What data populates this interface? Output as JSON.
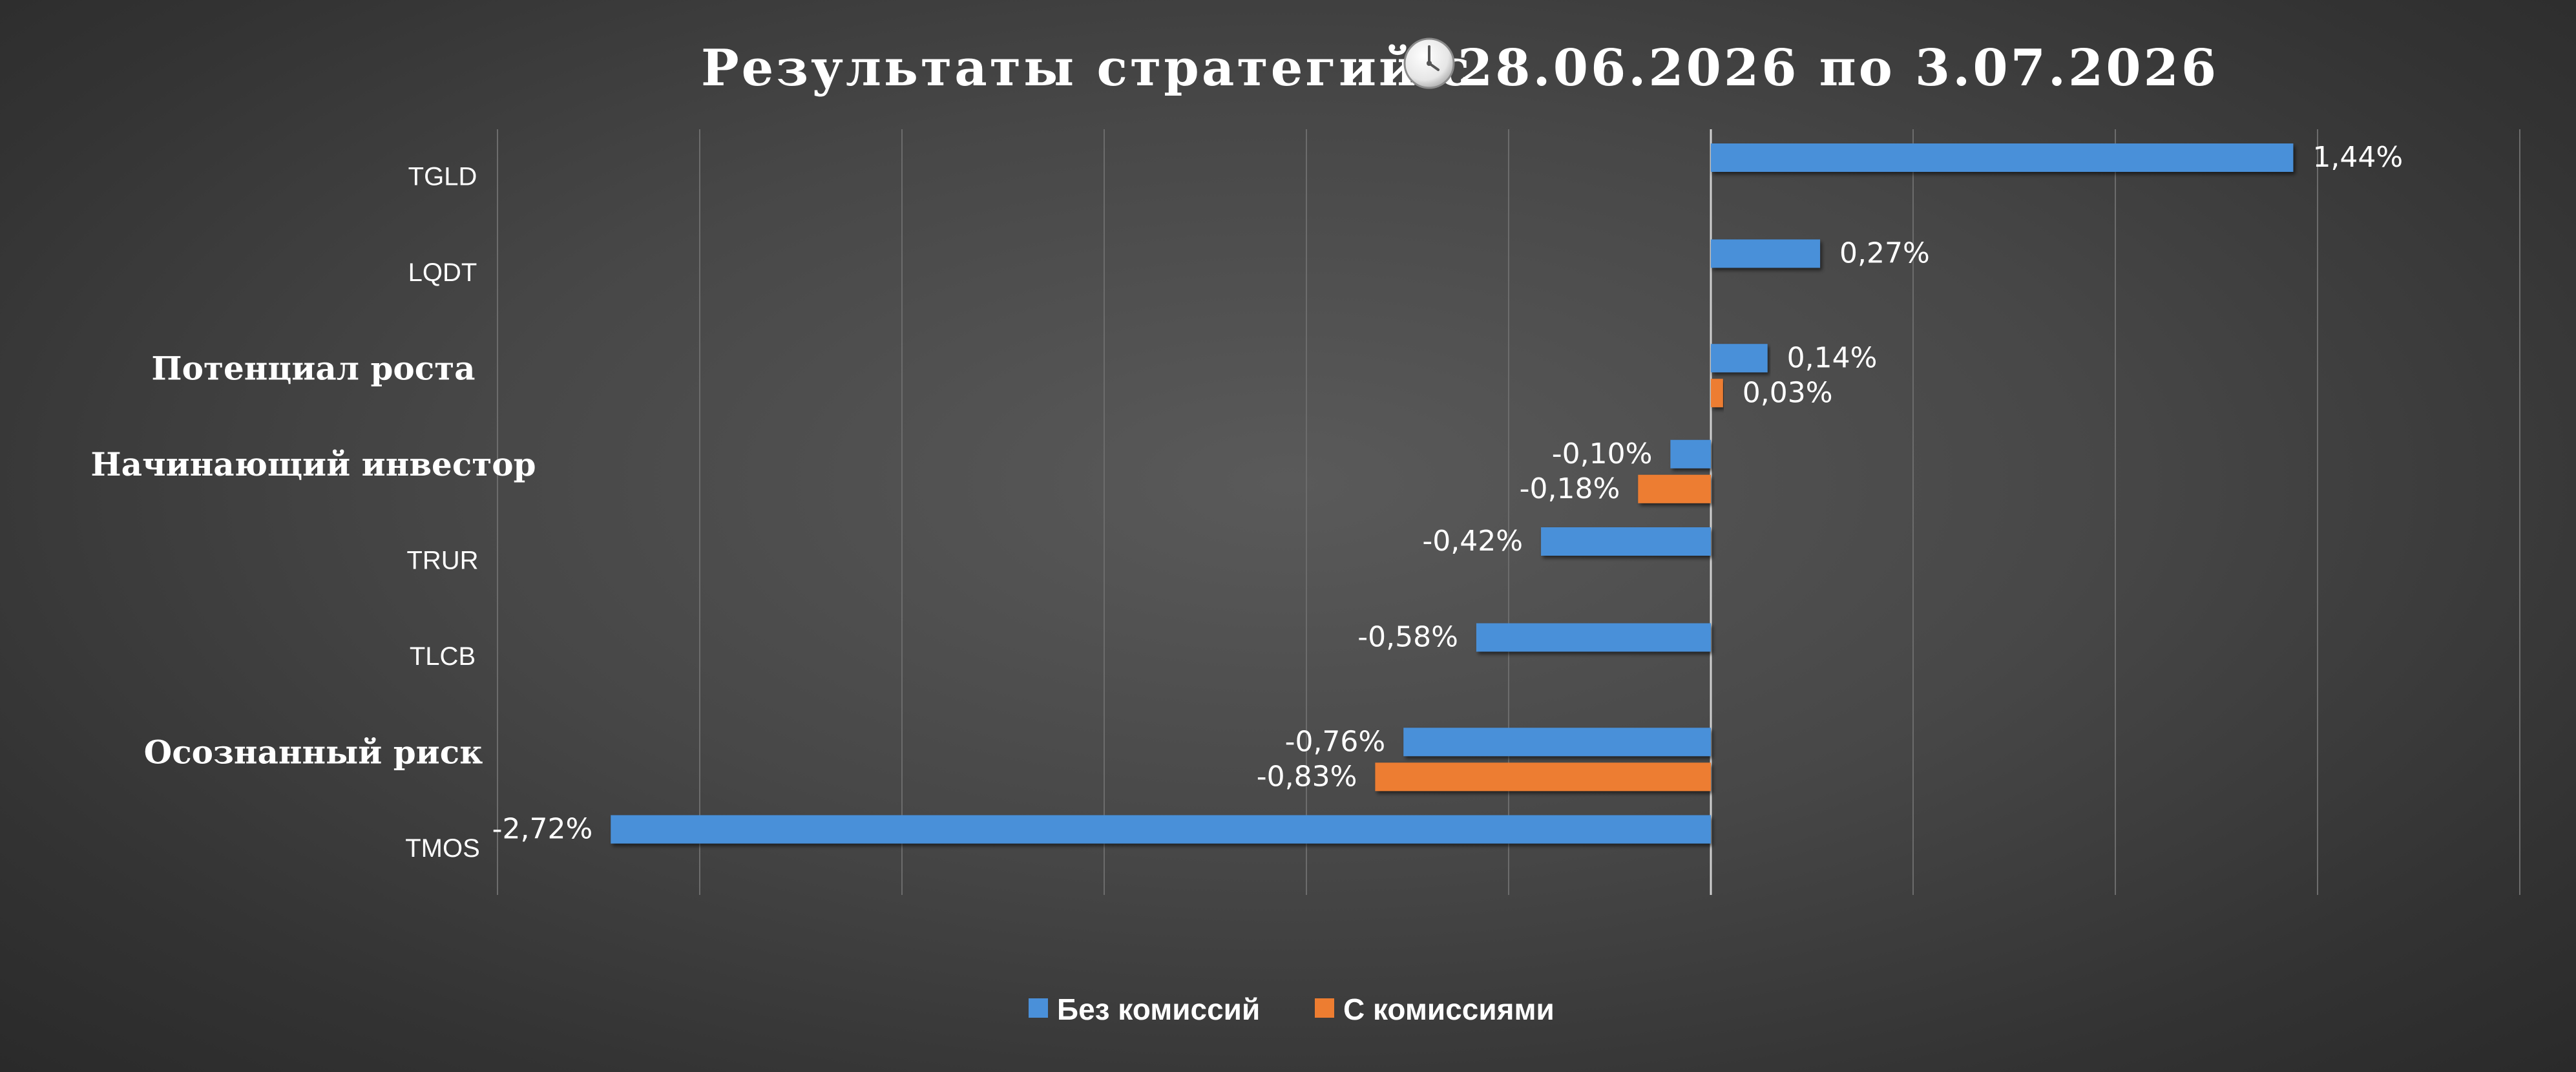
{
  "title": "Результаты стратегий с",
  "title_dates": "28.06.2026 по 3.07.2026",
  "title_icon": "clock-icon",
  "chart_data": {
    "type": "bar",
    "orientation": "horizontal",
    "title": "Результаты стратегий с 28.06.2026 по 3.07.2026",
    "categories": [
      "TGLD",
      "LQDT",
      "Потенциал роста",
      "Начинающий инвестор",
      "TRUR",
      "TLCB",
      "Осознанный риск",
      "TMOS"
    ],
    "category_kinds": [
      "fund",
      "fund",
      "strategy",
      "strategy",
      "fund",
      "fund",
      "strategy",
      "fund"
    ],
    "series": [
      {
        "name": "Без комиссий",
        "color": "#4a90d9",
        "values": [
          1.44,
          0.27,
          0.14,
          -0.1,
          -0.42,
          -0.58,
          -0.76,
          -2.72
        ],
        "labels": [
          "1,44%",
          "0,27%",
          "0,14%",
          "-0,10%",
          "-0,42%",
          "-0,58%",
          "-0,76%",
          "-2,72%"
        ]
      },
      {
        "name": "С комиссиями",
        "color": "#ed7d31",
        "values": [
          null,
          null,
          0.03,
          -0.18,
          null,
          null,
          -0.83,
          null
        ],
        "labels": [
          null,
          null,
          "0,03%",
          "-0,18%",
          null,
          null,
          "-0,83%",
          null
        ]
      }
    ],
    "xlim": [
      -3.0,
      2.0
    ],
    "x_grid_step": 0.5,
    "grid": true,
    "legend_position": "bottom",
    "value_unit": "%"
  }
}
